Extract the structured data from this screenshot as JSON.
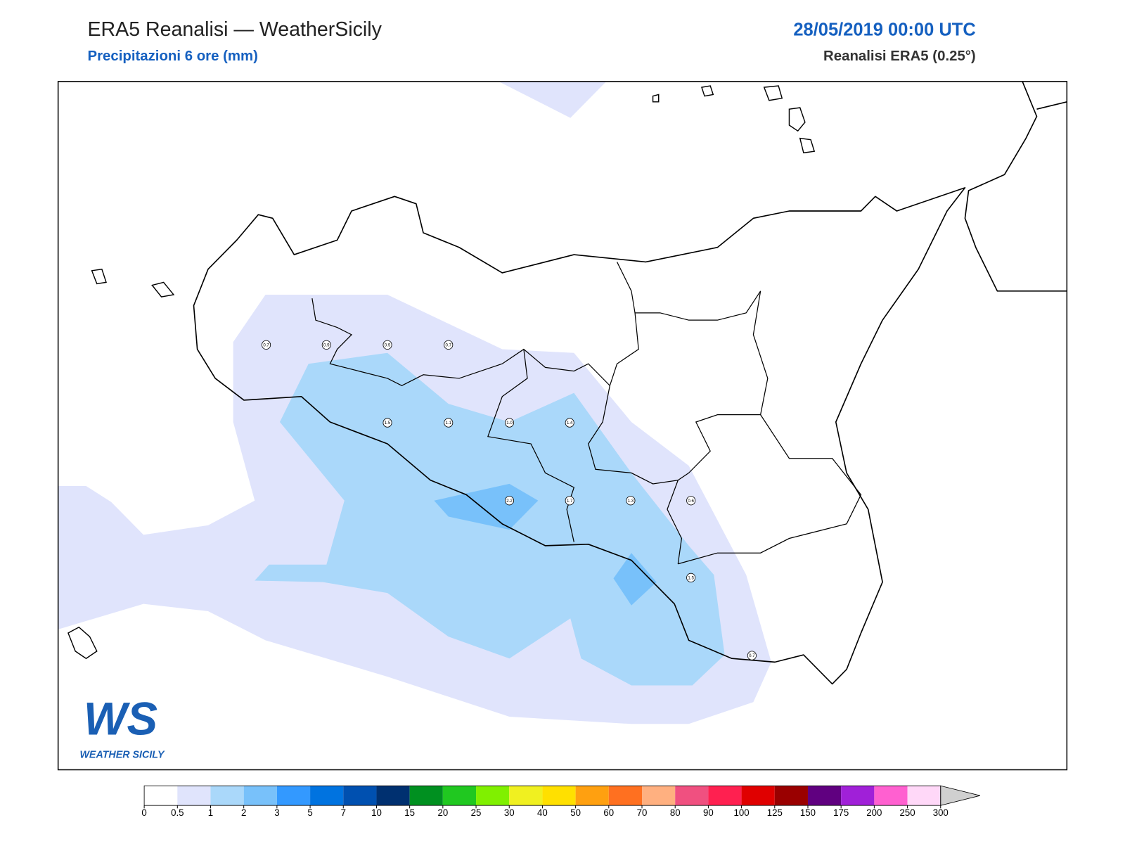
{
  "header": {
    "title": "ERA5 Reanalisi — WeatherSicily",
    "subtitle": "Precipitazioni 6 ore (mm)",
    "datetime": "28/05/2019 00:00 UTC",
    "source": "Reanalisi ERA5 (0.25°)"
  },
  "stations": {
    "values": [
      0.7,
      0.9,
      0.9,
      0.7,
      1.5,
      1.1,
      1,
      1.4,
      2.2,
      1.7,
      1.3,
      0.6,
      1.5,
      0.7
    ],
    "value_labels": [
      "0.7",
      "0.9",
      "0.9",
      "0.7",
      "1.5",
      "1.1",
      "1.0",
      "1.4",
      "2.2",
      "1.7",
      "1.3",
      "0.6",
      "1.5",
      "0.7"
    ]
  },
  "colorbar": {
    "ticks": [
      0,
      0.5,
      1,
      2,
      3,
      5,
      7,
      10,
      15,
      20,
      25,
      30,
      40,
      50,
      60,
      70,
      80,
      90,
      100,
      125,
      150,
      175,
      200,
      250,
      300
    ],
    "colors": [
      "#ffffff",
      "#e0e4fc",
      "#aad8fa",
      "#78c1fa",
      "#3399ff",
      "#0073e0",
      "#0050b0",
      "#003070",
      "#009020",
      "#20c820",
      "#80f000",
      "#f0f020",
      "#ffe000",
      "#ffa010",
      "#ff7020",
      "#ffb080",
      "#f05080",
      "#ff2050",
      "#e00000",
      "#9a0000",
      "#600080",
      "#a020d8",
      "#ff60d0",
      "#ffd8f8"
    ],
    "extend_color": "#d0d0d0"
  },
  "logo": {
    "mark": "WS",
    "name": "WEATHER SICILY"
  }
}
